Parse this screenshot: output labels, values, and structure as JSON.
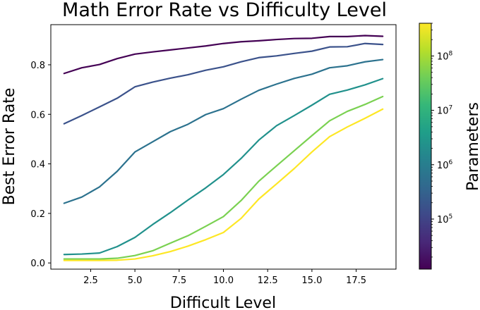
{
  "chart_data": {
    "type": "line",
    "title": "Math Error Rate vs Difficulty Level",
    "xlabel": "Difficult Level",
    "ylabel": "Best Error Rate",
    "xlim": [
      0.25,
      19.75
    ],
    "ylim": [
      -0.025,
      0.962
    ],
    "x_ticks": [
      2.5,
      5.0,
      7.5,
      10.0,
      12.5,
      15.0,
      17.5
    ],
    "x_tick_labels": [
      "2.5",
      "5.0",
      "7.5",
      "10.0",
      "12.5",
      "15.0",
      "17.5"
    ],
    "y_ticks": [
      0.0,
      0.2,
      0.4,
      0.6,
      0.8
    ],
    "y_tick_labels": [
      "0.0",
      "0.2",
      "0.4",
      "0.6",
      "0.8"
    ],
    "grid": false,
    "x": [
      1,
      2,
      3,
      4,
      5,
      6,
      7,
      8,
      9,
      10,
      11,
      12,
      13,
      14,
      15,
      16,
      17,
      18,
      19
    ],
    "series": [
      {
        "parameters": 30000,
        "color": "#440154",
        "values": [
          0.765,
          0.788,
          0.801,
          0.825,
          0.843,
          0.852,
          0.86,
          0.868,
          0.876,
          0.886,
          0.893,
          0.897,
          0.902,
          0.906,
          0.907,
          0.914,
          0.914,
          0.918,
          0.915
        ]
      },
      {
        "parameters": 80000,
        "color": "#3b528b",
        "values": [
          0.562,
          0.595,
          0.63,
          0.665,
          0.711,
          0.73,
          0.746,
          0.76,
          0.778,
          0.792,
          0.812,
          0.829,
          0.836,
          0.846,
          0.855,
          0.872,
          0.873,
          0.886,
          0.882
        ]
      },
      {
        "parameters": 1000000,
        "color": "#2c728e",
        "values": [
          0.241,
          0.266,
          0.307,
          0.37,
          0.448,
          0.489,
          0.53,
          0.56,
          0.599,
          0.623,
          0.661,
          0.697,
          0.722,
          0.745,
          0.762,
          0.788,
          0.796,
          0.812,
          0.821
        ]
      },
      {
        "parameters": 8000000,
        "color": "#21918c",
        "values": [
          0.034,
          0.036,
          0.04,
          0.066,
          0.103,
          0.155,
          0.203,
          0.254,
          0.303,
          0.357,
          0.422,
          0.496,
          0.554,
          0.595,
          0.637,
          0.681,
          0.698,
          0.719,
          0.744
        ]
      },
      {
        "parameters": 50000000,
        "color": "#7ad151",
        "values": [
          0.016,
          0.016,
          0.016,
          0.019,
          0.03,
          0.049,
          0.08,
          0.11,
          0.148,
          0.187,
          0.252,
          0.33,
          0.392,
          0.453,
          0.514,
          0.574,
          0.612,
          0.64,
          0.672
        ]
      },
      {
        "parameters": 300000000,
        "color": "#fde725",
        "values": [
          0.01,
          0.01,
          0.01,
          0.011,
          0.016,
          0.029,
          0.046,
          0.068,
          0.094,
          0.123,
          0.18,
          0.258,
          0.319,
          0.381,
          0.448,
          0.51,
          0.549,
          0.584,
          0.621
        ]
      }
    ],
    "colorbar": {
      "label": "Parameters",
      "scale": "log",
      "range": [
        12000,
        400000000
      ],
      "ticks": [
        {
          "value": 100000,
          "base": "10",
          "exp": "5"
        },
        {
          "value": 1000000,
          "base": "10",
          "exp": "6"
        },
        {
          "value": 10000000,
          "base": "10",
          "exp": "7"
        },
        {
          "value": 100000000,
          "base": "10",
          "exp": "8"
        }
      ],
      "colormap": [
        "#440154",
        "#482878",
        "#3e4989",
        "#31688e",
        "#26828e",
        "#1f9e89",
        "#35b779",
        "#6ece58",
        "#b5de2b",
        "#fde725"
      ]
    }
  }
}
